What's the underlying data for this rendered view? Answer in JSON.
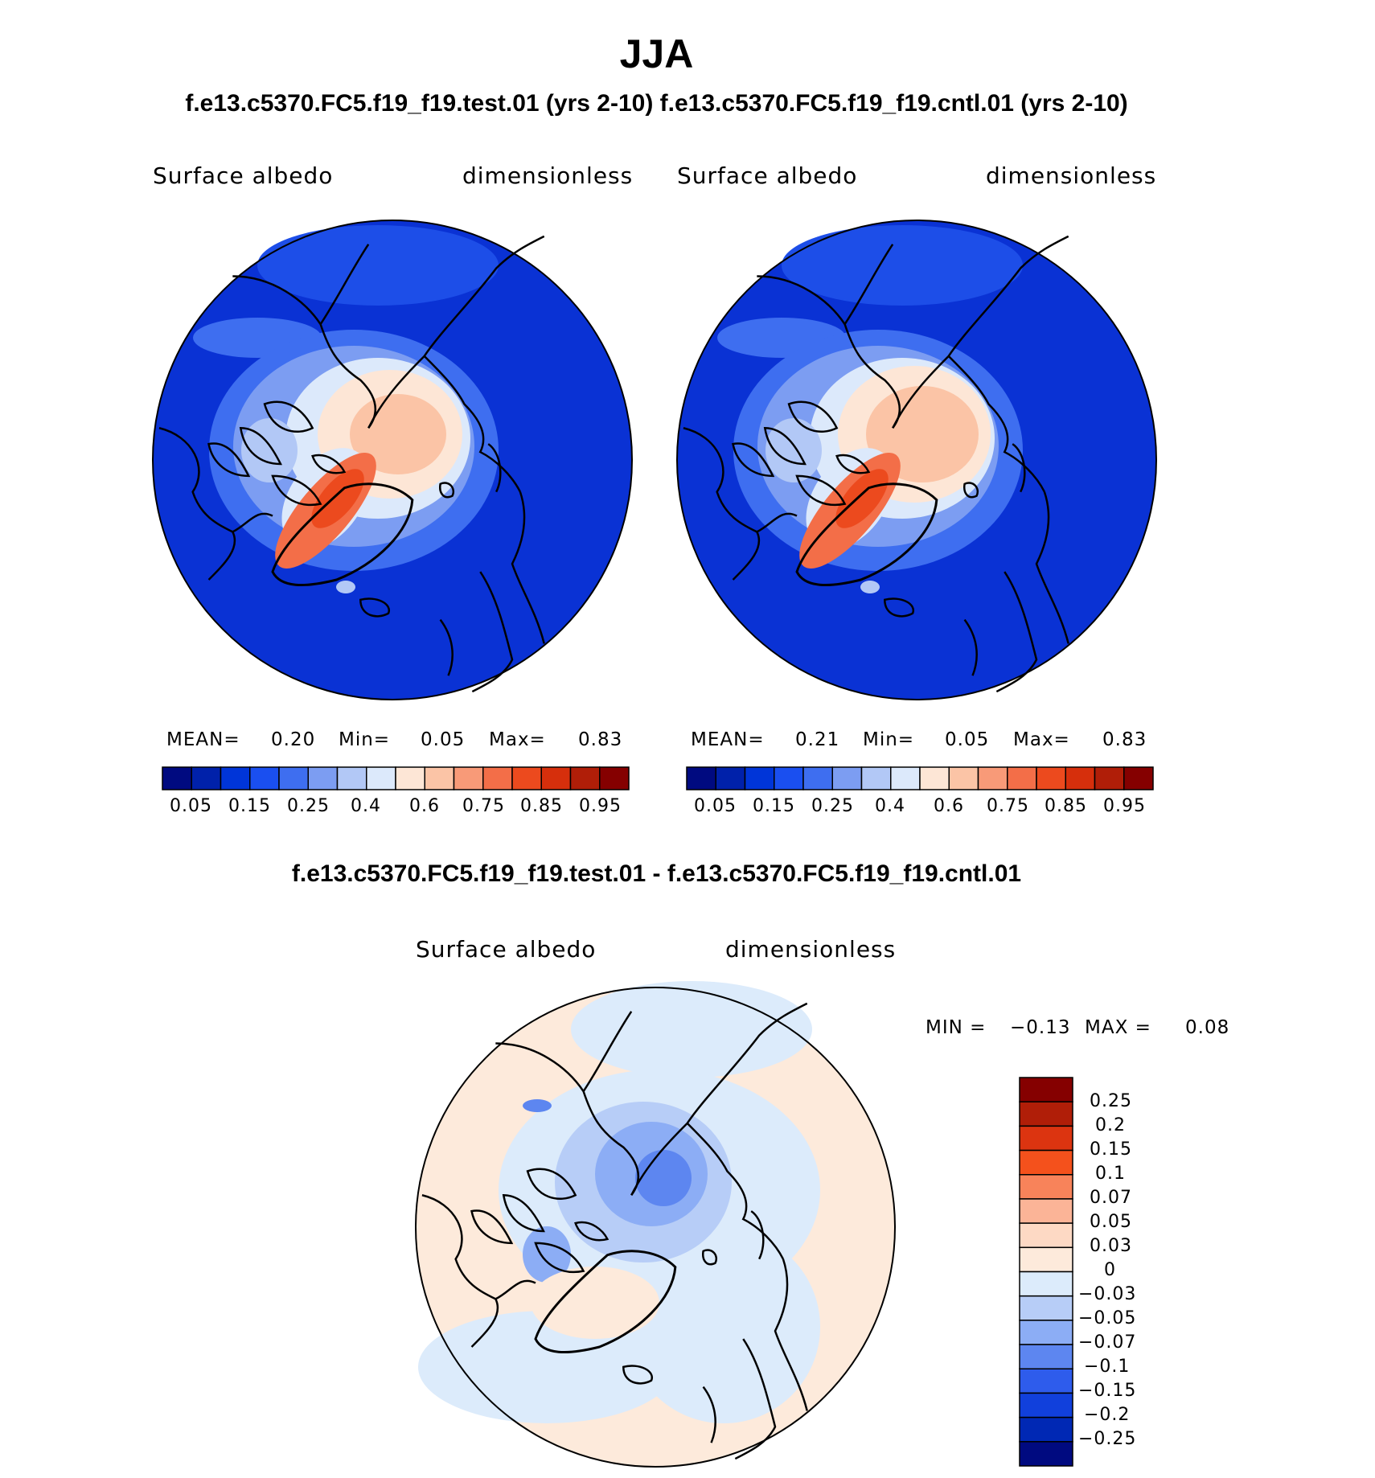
{
  "header": {
    "title": "JJA",
    "subtitle": "f.e13.c5370.FC5.f19_f19.test.01 (yrs 2-10) f.e13.c5370.FC5.f19_f19.cntl.01 (yrs 2-10)"
  },
  "panels": [
    {
      "variable": "Surface albedo",
      "units": "dimensionless",
      "stats": {
        "mean_label": "MEAN=",
        "mean": "0.20",
        "min_label": "Min=",
        "min": "0.05",
        "max_label": "Max=",
        "max": "0.83"
      }
    },
    {
      "variable": "Surface albedo",
      "units": "dimensionless",
      "stats": {
        "mean_label": "MEAN=",
        "mean": "0.21",
        "min_label": "Min=",
        "min": "0.05",
        "max_label": "Max=",
        "max": "0.83"
      }
    }
  ],
  "abs_colorbar": {
    "colors": [
      "#000a80",
      "#0021aa",
      "#0035d8",
      "#1a4ff0",
      "#3e6ef0",
      "#7c9df2",
      "#b2c8f6",
      "#dce9fb",
      "#fde6d6",
      "#fbc4a6",
      "#f89a78",
      "#f36e48",
      "#ec4a1e",
      "#d62f0c",
      "#b01e08",
      "#850000"
    ],
    "labels": [
      "0.05",
      "0.15",
      "0.25",
      "0.4",
      "0.6",
      "0.75",
      "0.85",
      "0.95"
    ]
  },
  "difference": {
    "title": "f.e13.c5370.FC5.f19_f19.test.01 - f.e13.c5370.FC5.f19_f19.cntl.01",
    "variable": "Surface albedo",
    "units": "dimensionless",
    "min_label": "MIN =",
    "min": "−0.13",
    "max_label": "MAX =",
    "max": "0.08"
  },
  "diff_colorbar": {
    "colors": [
      "#850000",
      "#b01e08",
      "#dc3410",
      "#f4511c",
      "#f8835a",
      "#fbb497",
      "#fdd9c4",
      "#fdeadb",
      "#dcebfb",
      "#b7cdf7",
      "#8cadf5",
      "#5d86f0",
      "#2e5cec",
      "#1140dc",
      "#0028b4",
      "#000a80"
    ],
    "labels": [
      "0.25",
      "0.2",
      "0.15",
      "0.1",
      "0.07",
      "0.05",
      "0.03",
      "0",
      "−0.03",
      "−0.05",
      "−0.07",
      "−0.1",
      "−0.15",
      "−0.2",
      "−0.25"
    ]
  }
}
